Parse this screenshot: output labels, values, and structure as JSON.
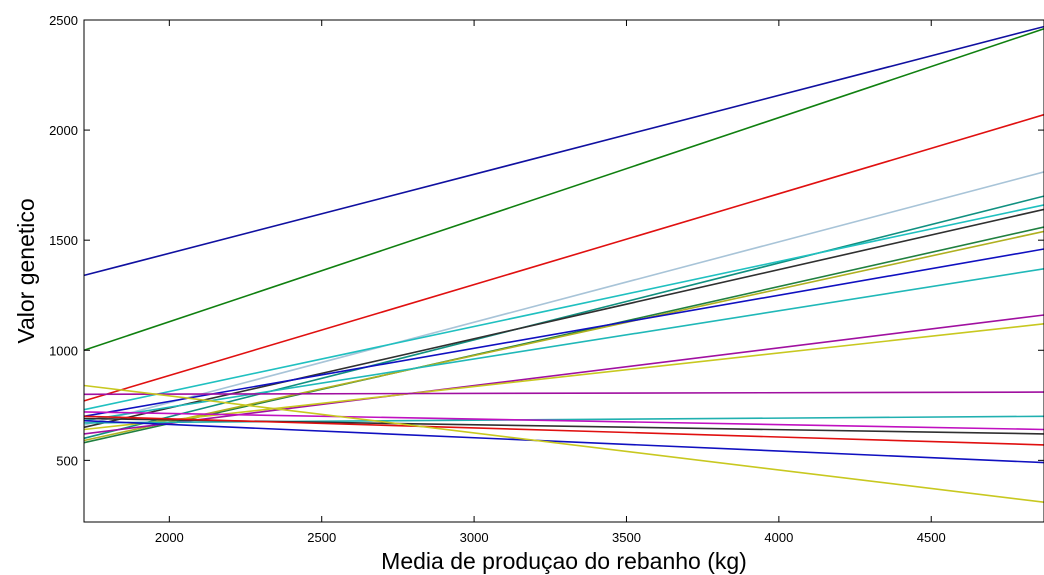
{
  "chart_data": {
    "type": "line",
    "xlabel": "Media de produçao do rebanho (kg)",
    "ylabel": "Valor genetico",
    "xlim": [
      1720,
      4870
    ],
    "ylim": [
      220,
      2500
    ],
    "xticks": [
      2000,
      2500,
      3000,
      3500,
      4000,
      4500
    ],
    "yticks": [
      500,
      1000,
      1500,
      2000,
      2500
    ],
    "grid": false,
    "legend": "none",
    "x": [
      1720,
      4870
    ],
    "series": [
      {
        "color": "#1010a0",
        "values": [
          1340,
          2470
        ]
      },
      {
        "color": "#108010",
        "values": [
          1000,
          2460
        ]
      },
      {
        "color": "#e01010",
        "values": [
          770,
          2070
        ]
      },
      {
        "color": "#a8c4d8",
        "values": [
          660,
          1810
        ]
      },
      {
        "color": "#109080",
        "values": [
          600,
          1700
        ]
      },
      {
        "color": "#20c0c0",
        "values": [
          730,
          1660
        ]
      },
      {
        "color": "#303030",
        "values": [
          650,
          1640
        ]
      },
      {
        "color": "#208040",
        "values": [
          580,
          1560
        ]
      },
      {
        "color": "#b0b020",
        "values": [
          590,
          1540
        ]
      },
      {
        "color": "#1010c0",
        "values": [
          700,
          1460
        ]
      },
      {
        "color": "#20b8b8",
        "values": [
          680,
          1370
        ]
      },
      {
        "color": "#a010a0",
        "values": [
          620,
          1160
        ]
      },
      {
        "color": "#c8c820",
        "values": [
          640,
          1120
        ]
      },
      {
        "color": "#a010a0",
        "values": [
          800,
          810
        ]
      },
      {
        "color": "#20b0b0",
        "values": [
          670,
          700
        ]
      },
      {
        "color": "#c010c0",
        "values": [
          720,
          640
        ]
      },
      {
        "color": "#303030",
        "values": [
          690,
          620
        ]
      },
      {
        "color": "#e01010",
        "values": [
          700,
          570
        ]
      },
      {
        "color": "#1010c0",
        "values": [
          680,
          490
        ]
      },
      {
        "color": "#c8c820",
        "values": [
          840,
          310
        ]
      }
    ]
  }
}
